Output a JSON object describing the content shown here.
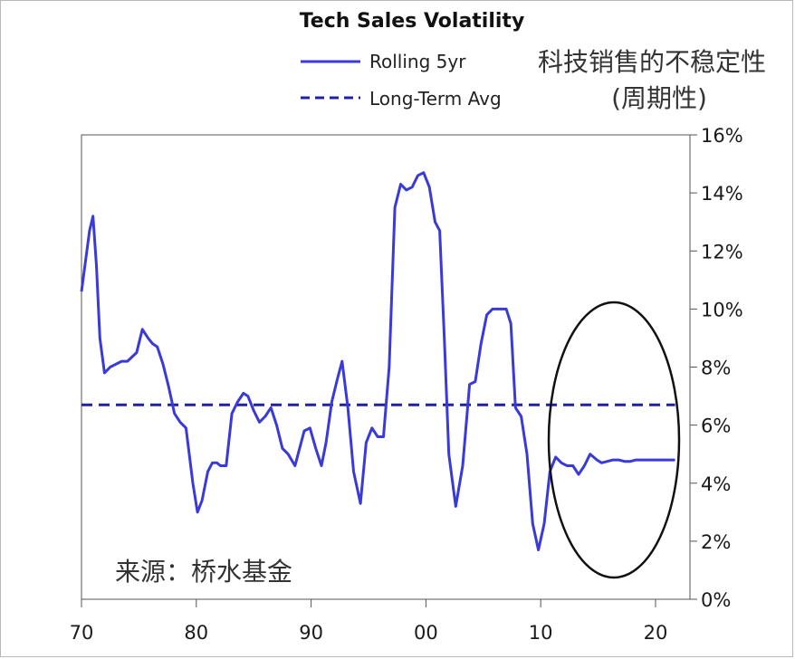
{
  "chart_data": {
    "type": "line",
    "title": "Tech Sales Volatility",
    "xlabel": "",
    "ylabel": "",
    "x_ticks": [
      "70",
      "80",
      "90",
      "00",
      "10",
      "20"
    ],
    "y_ticks": [
      "0%",
      "2%",
      "4%",
      "6%",
      "8%",
      "10%",
      "12%",
      "14%",
      "16%"
    ],
    "xlim": [
      1970,
      2023
    ],
    "ylim": [
      0,
      16
    ],
    "series": [
      {
        "name": "Rolling 5yr",
        "color": "#3a3ad8",
        "style": "solid",
        "x": [
          1970.0,
          1970.3,
          1970.7,
          1971.0,
          1971.3,
          1971.6,
          1972.0,
          1972.5,
          1973.0,
          1973.5,
          1974.0,
          1974.8,
          1975.3,
          1975.8,
          1976.2,
          1976.6,
          1977.1,
          1977.6,
          1978.1,
          1978.6,
          1979.1,
          1979.7,
          1980.1,
          1980.5,
          1981.0,
          1981.4,
          1981.8,
          1982.1,
          1982.6,
          1983.1,
          1983.6,
          1984.1,
          1984.5,
          1985.0,
          1985.5,
          1986.0,
          1986.5,
          1987.0,
          1987.5,
          1988.0,
          1988.6,
          1989.0,
          1989.4,
          1989.9,
          1990.4,
          1990.9,
          1991.3,
          1991.8,
          1992.3,
          1992.7,
          1993.2,
          1993.7,
          1994.3,
          1994.8,
          1995.3,
          1995.8,
          1996.3,
          1996.8,
          1997.3,
          1997.8,
          1998.3,
          1998.8,
          1999.3,
          1999.8,
          2000.3,
          2000.8,
          2001.2,
          2001.6,
          2002.0,
          2002.6,
          2003.2,
          2003.8,
          2004.3,
          2004.8,
          2005.3,
          2005.8,
          2006.2,
          2006.6,
          2007.0,
          2007.4,
          2007.8,
          2008.3,
          2008.8,
          2009.3,
          2009.8,
          2010.3,
          2010.8,
          2011.3,
          2011.8,
          2012.3,
          2012.8,
          2013.3,
          2013.8,
          2014.3,
          2014.6,
          2014.9,
          2015.3,
          2015.8,
          2016.3,
          2016.8,
          2017.3,
          2017.8,
          2018.3,
          2018.8,
          2019.3,
          2019.8,
          2020.3,
          2020.7,
          2021.0,
          2021.3,
          2021.7
        ],
        "values": [
          10.6,
          11.5,
          12.7,
          13.2,
          11.5,
          9.0,
          7.8,
          8.0,
          8.1,
          8.2,
          8.2,
          8.5,
          9.3,
          9.0,
          8.8,
          8.7,
          8.1,
          7.3,
          6.4,
          6.1,
          5.9,
          4.0,
          3.0,
          3.4,
          4.4,
          4.7,
          4.7,
          4.6,
          4.6,
          6.4,
          6.8,
          7.1,
          7.0,
          6.5,
          6.1,
          6.3,
          6.6,
          6.0,
          5.2,
          5.0,
          4.6,
          5.2,
          5.8,
          5.9,
          5.2,
          4.6,
          5.4,
          6.8,
          7.6,
          8.2,
          6.6,
          4.4,
          3.3,
          5.4,
          5.9,
          5.6,
          5.6,
          8.0,
          13.5,
          14.3,
          14.1,
          14.2,
          14.6,
          14.7,
          14.2,
          13.0,
          12.7,
          9.0,
          5.0,
          3.2,
          4.6,
          7.4,
          7.5,
          8.8,
          9.8,
          10.0,
          10.0,
          10.0,
          10.0,
          9.5,
          6.6,
          6.3,
          5.0,
          2.6,
          1.7,
          2.6,
          4.4,
          4.9,
          4.7,
          4.6,
          4.6,
          4.3,
          4.6,
          5.0,
          4.9,
          4.8,
          4.7,
          4.75,
          4.8,
          4.8,
          4.75,
          4.75,
          4.8,
          4.8,
          4.8,
          4.8,
          4.8,
          4.8,
          4.8,
          4.8,
          4.8
        ],
        "note": "Solid rolling 5yr line"
      },
      {
        "name": "Long-Term Avg",
        "color": "#2020a0",
        "style": "dashed",
        "x": [
          1970,
          2021.7
        ],
        "values": [
          6.7,
          6.7
        ]
      }
    ],
    "annotations": {
      "chinese_title_line1": "科技销售的不稳定性",
      "chinese_title_line2": "(周期性)",
      "source": "来源：桥水基金"
    },
    "highlight": "ellipse around 2011-2021"
  }
}
